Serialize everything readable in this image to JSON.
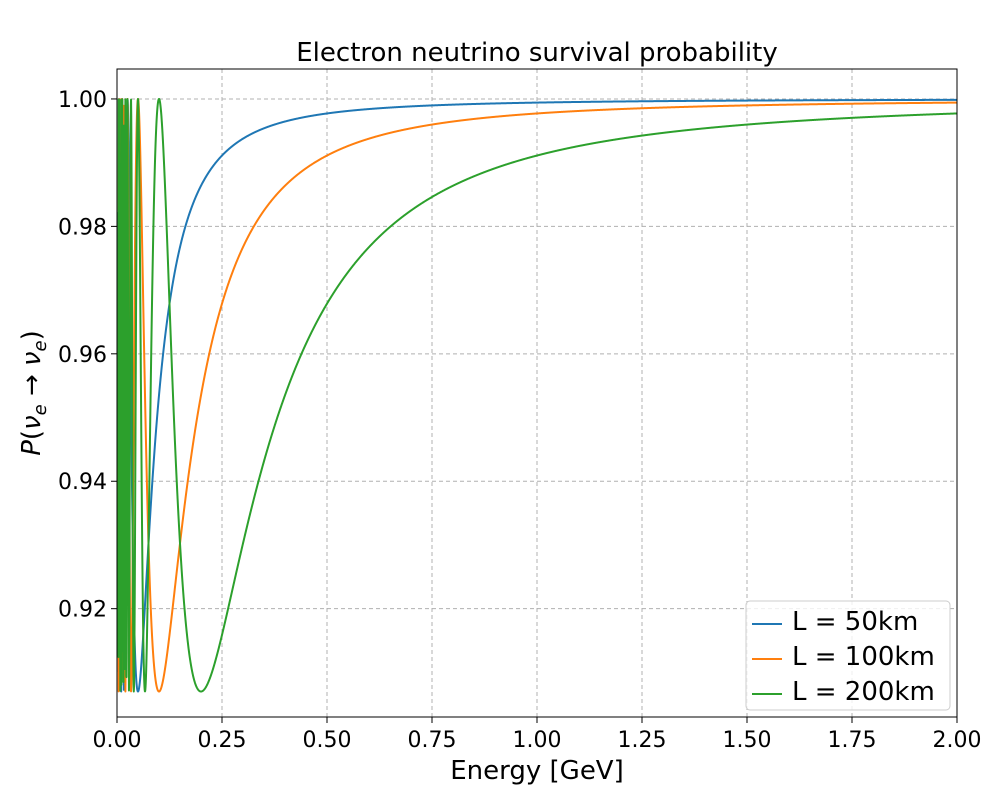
{
  "chart_data": {
    "type": "line",
    "title": "Electron neutrino survival probability",
    "xlabel": "Energy [GeV]",
    "ylabel": {
      "p": "P",
      "open": "(",
      "nu1": "ν",
      "sub1": "e",
      "arrow": " → ",
      "nu2": "ν",
      "sub2": "e",
      "close": ")"
    },
    "xlim": [
      0.0,
      2.0
    ],
    "ylim": [
      0.903,
      1.0047
    ],
    "xticks": [
      0.0,
      0.25,
      0.5,
      0.75,
      1.0,
      1.25,
      1.5,
      1.75,
      2.0
    ],
    "xtick_labels": [
      "0.00",
      "0.25",
      "0.50",
      "0.75",
      "1.00",
      "1.25",
      "1.50",
      "1.75",
      "2.00"
    ],
    "yticks": [
      0.92,
      0.94,
      0.96,
      0.98,
      1.0
    ],
    "ytick_labels": [
      "0.92",
      "0.94",
      "0.96",
      "0.98",
      "1.00"
    ],
    "grid": true,
    "legend_position": "lower-right",
    "series": [
      {
        "name": "L = 50km",
        "color": "#1f77b4",
        "min_energy": 0.05,
        "min_probability": 0.907,
        "x": [
          0.01,
          0.02,
          0.03,
          0.04,
          0.05,
          0.06,
          0.075,
          0.1,
          0.15,
          0.2,
          0.25,
          0.3,
          0.4,
          0.5,
          0.75,
          1.0,
          1.5,
          2.0
        ],
        "y": [
          0.907,
          0.996,
          0.999,
          0.938,
          0.907,
          0.924,
          0.955,
          0.978,
          0.9907,
          0.9947,
          0.9966,
          0.9976,
          0.9987,
          0.9992,
          0.9996,
          0.9998,
          0.9999,
          1.0
        ]
      },
      {
        "name": "L = 100km",
        "color": "#ff7f0e",
        "min_energy": 0.1,
        "min_probability": 0.907,
        "x": [
          0.02,
          0.025,
          0.033,
          0.04,
          0.05,
          0.06,
          0.075,
          0.1,
          0.125,
          0.15,
          0.2,
          0.25,
          0.3,
          0.4,
          0.5,
          0.75,
          1.0,
          1.5,
          2.0
        ],
        "y": [
          0.907,
          0.984,
          0.999,
          0.942,
          0.907,
          0.96,
          0.999,
          0.907,
          0.924,
          0.946,
          0.969,
          0.979,
          0.985,
          0.991,
          0.9943,
          0.9974,
          0.9985,
          0.9994,
          0.9997
        ]
      },
      {
        "name": "L = 200km",
        "color": "#2ca02c",
        "min_energy": 0.2,
        "min_probability": 0.907,
        "x": [
          0.04,
          0.05,
          0.067,
          0.08,
          0.1,
          0.125,
          0.15,
          0.2,
          0.25,
          0.3,
          0.4,
          0.5,
          0.6,
          0.75,
          1.0,
          1.25,
          1.5,
          2.0
        ],
        "y": [
          0.907,
          0.965,
          0.907,
          0.942,
          1.0,
          0.971,
          0.94,
          0.907,
          0.922,
          0.939,
          0.961,
          0.972,
          0.979,
          0.986,
          0.9909,
          0.9941,
          0.996,
          0.9978
        ]
      }
    ]
  }
}
